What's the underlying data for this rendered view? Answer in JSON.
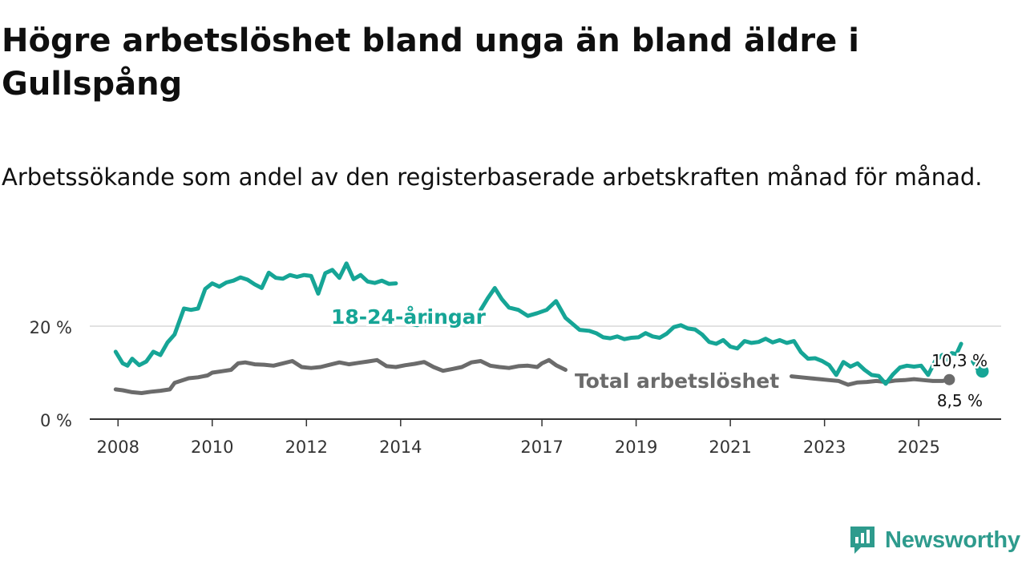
{
  "title": "Högre arbetslöshet bland unga än bland äldre i Gullspång",
  "subtitle": "Arbetssökande som andel av den registerbaserade arbetskraften månad för månad.",
  "brand": {
    "name": "Newsworthy",
    "color": "#2e9b8d"
  },
  "chart_data": {
    "type": "line",
    "x_range": [
      2007.4,
      2026.75
    ],
    "ylim": [
      0,
      35
    ],
    "y_ticks": [
      0,
      20
    ],
    "y_tick_labels": [
      "0 %",
      "20 %"
    ],
    "grid": true,
    "x_ticks": [
      2008,
      2010,
      2012,
      2014,
      2017,
      2019,
      2021,
      2023,
      2025
    ],
    "x_tick_labels": [
      "2008",
      "2010",
      "2012",
      "2014",
      "2017",
      "2019",
      "2021",
      "2023",
      "2025"
    ],
    "series": [
      {
        "name": "Total arbetslöshet",
        "color": "#6b6b6b",
        "label": "Total arbetslöshet",
        "end_label": "8,5 %",
        "points": [
          [
            2007.95,
            6.4
          ],
          [
            2008.1,
            6.2
          ],
          [
            2008.3,
            5.8
          ],
          [
            2008.5,
            5.6
          ],
          [
            2008.7,
            5.9
          ],
          [
            2008.9,
            6.1
          ],
          [
            2009.1,
            6.4
          ],
          [
            2009.2,
            7.8
          ],
          [
            2009.35,
            8.3
          ],
          [
            2009.5,
            8.8
          ],
          [
            2009.7,
            9.0
          ],
          [
            2009.9,
            9.4
          ],
          [
            2010.0,
            10.0
          ],
          [
            2010.2,
            10.3
          ],
          [
            2010.4,
            10.6
          ],
          [
            2010.55,
            12.0
          ],
          [
            2010.7,
            12.2
          ],
          [
            2010.9,
            11.8
          ],
          [
            2011.1,
            11.7
          ],
          [
            2011.3,
            11.5
          ],
          [
            2011.5,
            12.0
          ],
          [
            2011.7,
            12.5
          ],
          [
            2011.9,
            11.2
          ],
          [
            2012.1,
            11.0
          ],
          [
            2012.3,
            11.2
          ],
          [
            2012.5,
            11.7
          ],
          [
            2012.7,
            12.2
          ],
          [
            2012.9,
            11.8
          ],
          [
            2013.1,
            12.1
          ],
          [
            2013.3,
            12.4
          ],
          [
            2013.5,
            12.7
          ],
          [
            2013.7,
            11.4
          ],
          [
            2013.9,
            11.2
          ],
          [
            2014.1,
            11.6
          ],
          [
            2014.3,
            11.9
          ],
          [
            2014.5,
            12.3
          ],
          [
            2014.7,
            11.2
          ],
          [
            2014.9,
            10.4
          ],
          [
            2015.1,
            10.8
          ],
          [
            2015.3,
            11.2
          ],
          [
            2015.5,
            12.2
          ],
          [
            2015.7,
            12.5
          ],
          [
            2015.9,
            11.5
          ],
          [
            2016.1,
            11.2
          ],
          [
            2016.3,
            11.0
          ],
          [
            2016.5,
            11.4
          ],
          [
            2016.7,
            11.5
          ],
          [
            2016.9,
            11.2
          ],
          [
            2017.0,
            12.0
          ],
          [
            2017.15,
            12.7
          ],
          [
            2017.3,
            11.6
          ],
          [
            2017.5,
            10.6
          ]
        ]
      },
      {
        "name": "Total arbetslöshet (cont.)",
        "color": "#6b6b6b",
        "points": [
          [
            2022.3,
            9.2
          ],
          [
            2022.5,
            9.0
          ],
          [
            2022.7,
            8.8
          ],
          [
            2022.9,
            8.6
          ],
          [
            2023.1,
            8.4
          ],
          [
            2023.3,
            8.2
          ],
          [
            2023.5,
            7.4
          ],
          [
            2023.7,
            7.9
          ],
          [
            2023.9,
            8.0
          ],
          [
            2024.1,
            8.2
          ],
          [
            2024.3,
            8.0
          ],
          [
            2024.5,
            8.3
          ],
          [
            2024.7,
            8.4
          ],
          [
            2024.9,
            8.6
          ],
          [
            2025.1,
            8.4
          ],
          [
            2025.3,
            8.2
          ],
          [
            2025.5,
            8.2
          ],
          [
            2025.65,
            8.5
          ]
        ]
      },
      {
        "name": "18-24-åringar",
        "color": "#16a596",
        "label": "18-24-åringar",
        "end_label": "10,3 %",
        "points": [
          [
            2007.95,
            14.5
          ],
          [
            2008.1,
            12.0
          ],
          [
            2008.2,
            11.5
          ],
          [
            2008.3,
            13.0
          ],
          [
            2008.45,
            11.6
          ],
          [
            2008.6,
            12.4
          ],
          [
            2008.75,
            14.5
          ],
          [
            2008.9,
            13.8
          ],
          [
            2009.05,
            16.5
          ],
          [
            2009.2,
            18.2
          ],
          [
            2009.4,
            23.8
          ],
          [
            2009.55,
            23.5
          ],
          [
            2009.7,
            23.8
          ],
          [
            2009.85,
            28.0
          ],
          [
            2010.0,
            29.2
          ],
          [
            2010.15,
            28.5
          ],
          [
            2010.3,
            29.4
          ],
          [
            2010.45,
            29.8
          ],
          [
            2010.6,
            30.5
          ],
          [
            2010.75,
            30.0
          ],
          [
            2010.9,
            29.0
          ],
          [
            2011.05,
            28.2
          ],
          [
            2011.2,
            31.5
          ],
          [
            2011.35,
            30.4
          ],
          [
            2011.5,
            30.2
          ],
          [
            2011.65,
            31.0
          ],
          [
            2011.8,
            30.6
          ],
          [
            2011.95,
            31.0
          ],
          [
            2012.1,
            30.8
          ],
          [
            2012.25,
            27.0
          ],
          [
            2012.4,
            31.4
          ],
          [
            2012.55,
            32.1
          ],
          [
            2012.7,
            30.4
          ],
          [
            2012.85,
            33.5
          ],
          [
            2013.0,
            30.1
          ],
          [
            2013.15,
            31.0
          ],
          [
            2013.3,
            29.6
          ],
          [
            2013.45,
            29.3
          ],
          [
            2013.6,
            29.8
          ],
          [
            2013.75,
            29.1
          ],
          [
            2013.9,
            29.2
          ]
        ]
      },
      {
        "name": "18-24-åringar (cont.)",
        "color": "#16a596",
        "points": [
          [
            2014.2,
            20.5
          ],
          [
            2014.35,
            20.2
          ],
          [
            2014.5,
            21.0
          ],
          [
            2014.7,
            21.2
          ]
        ]
      },
      {
        "name": "18-24-åringar (cont. 2)",
        "color": "#16a596",
        "points": [
          [
            2015.7,
            23.5
          ],
          [
            2015.85,
            26.0
          ],
          [
            2016.0,
            28.2
          ],
          [
            2016.15,
            25.8
          ],
          [
            2016.3,
            24.0
          ],
          [
            2016.5,
            23.5
          ],
          [
            2016.7,
            22.2
          ],
          [
            2016.9,
            22.8
          ],
          [
            2017.1,
            23.5
          ],
          [
            2017.3,
            25.4
          ],
          [
            2017.5,
            21.8
          ],
          [
            2017.65,
            20.5
          ],
          [
            2017.8,
            19.2
          ],
          [
            2018.0,
            19.0
          ],
          [
            2018.15,
            18.5
          ],
          [
            2018.3,
            17.6
          ],
          [
            2018.45,
            17.4
          ],
          [
            2018.6,
            17.8
          ],
          [
            2018.75,
            17.2
          ],
          [
            2018.9,
            17.5
          ],
          [
            2019.05,
            17.6
          ],
          [
            2019.2,
            18.5
          ],
          [
            2019.35,
            17.8
          ],
          [
            2019.5,
            17.5
          ],
          [
            2019.65,
            18.4
          ],
          [
            2019.8,
            19.8
          ],
          [
            2019.95,
            20.2
          ],
          [
            2020.1,
            19.5
          ],
          [
            2020.25,
            19.3
          ],
          [
            2020.4,
            18.2
          ],
          [
            2020.55,
            16.6
          ],
          [
            2020.7,
            16.2
          ],
          [
            2020.85,
            17.0
          ],
          [
            2021.0,
            15.6
          ],
          [
            2021.15,
            15.2
          ],
          [
            2021.3,
            16.8
          ],
          [
            2021.45,
            16.4
          ],
          [
            2021.6,
            16.6
          ],
          [
            2021.75,
            17.3
          ],
          [
            2021.9,
            16.5
          ],
          [
            2022.05,
            17.0
          ],
          [
            2022.2,
            16.4
          ],
          [
            2022.35,
            16.8
          ],
          [
            2022.5,
            14.4
          ],
          [
            2022.65,
            13.0
          ],
          [
            2022.8,
            13.1
          ],
          [
            2022.95,
            12.5
          ],
          [
            2023.1,
            11.6
          ],
          [
            2023.25,
            9.5
          ],
          [
            2023.4,
            12.3
          ],
          [
            2023.55,
            11.3
          ],
          [
            2023.7,
            12.0
          ],
          [
            2023.85,
            10.6
          ],
          [
            2024.0,
            9.5
          ],
          [
            2024.15,
            9.3
          ],
          [
            2024.3,
            7.6
          ],
          [
            2024.45,
            9.6
          ],
          [
            2024.6,
            11.1
          ],
          [
            2024.75,
            11.5
          ],
          [
            2024.9,
            11.3
          ],
          [
            2025.05,
            11.5
          ],
          [
            2025.2,
            9.5
          ],
          [
            2025.35,
            12.5
          ],
          [
            2025.5,
            13.8
          ],
          [
            2025.6,
            12.8
          ],
          [
            2025.7,
            14.2
          ],
          [
            2025.8,
            14.0
          ],
          [
            2025.9,
            16.2
          ]
        ]
      },
      {
        "name": "18-24-åringar (end)",
        "color": "#16a596",
        "points": [
          [
            2026.15,
            12.4
          ],
          [
            2026.25,
            10.8
          ],
          [
            2026.35,
            10.3
          ]
        ],
        "end_marker": true
      }
    ]
  }
}
